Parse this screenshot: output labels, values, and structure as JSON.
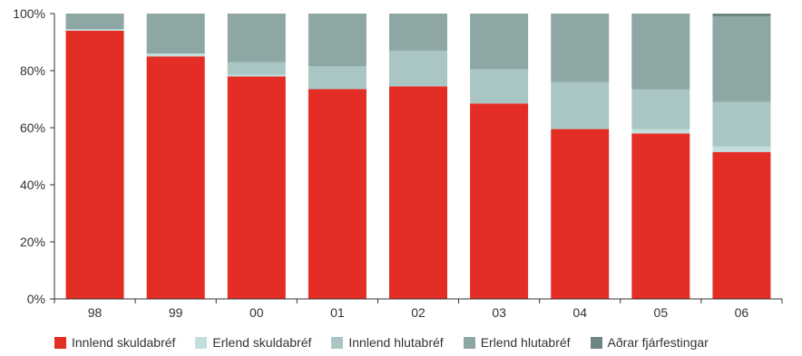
{
  "chart_data": {
    "type": "bar",
    "stacked": true,
    "categories": [
      "98",
      "99",
      "00",
      "01",
      "02",
      "03",
      "04",
      "05",
      "06"
    ],
    "ylim": [
      0,
      100
    ],
    "y_ticks": [
      "0%",
      "20%",
      "40%",
      "60%",
      "80%",
      "100%"
    ],
    "y_tick_values": [
      0,
      20,
      40,
      60,
      80,
      100
    ],
    "xlabel": "",
    "ylabel": "",
    "grid": false,
    "legend_position": "bottom",
    "series": [
      {
        "name": "Innlend skuldabréf",
        "color": "#e42d24",
        "values": [
          94,
          85,
          78,
          73.5,
          74.5,
          68.5,
          59.5,
          58,
          51.5
        ]
      },
      {
        "name": "Erlend skuldabréf",
        "color": "#c2dfdd",
        "values": [
          0.5,
          1,
          0.5,
          0,
          0,
          0,
          0,
          1.5,
          2
        ]
      },
      {
        "name": "Innlend hlutabréf",
        "color": "#a9c5c4",
        "values": [
          0,
          0,
          4.5,
          8,
          12.5,
          12,
          16.5,
          14,
          15.5
        ]
      },
      {
        "name": "Erlend hlutabréf",
        "color": "#8fa7a4",
        "values": [
          5.5,
          14,
          17,
          18.5,
          13,
          19.5,
          24,
          26.5,
          30
        ]
      },
      {
        "name": "Aðrar fjárfestingar",
        "color": "#6b8683",
        "values": [
          0,
          0,
          0,
          0,
          0,
          0,
          0,
          0,
          1
        ]
      }
    ]
  }
}
